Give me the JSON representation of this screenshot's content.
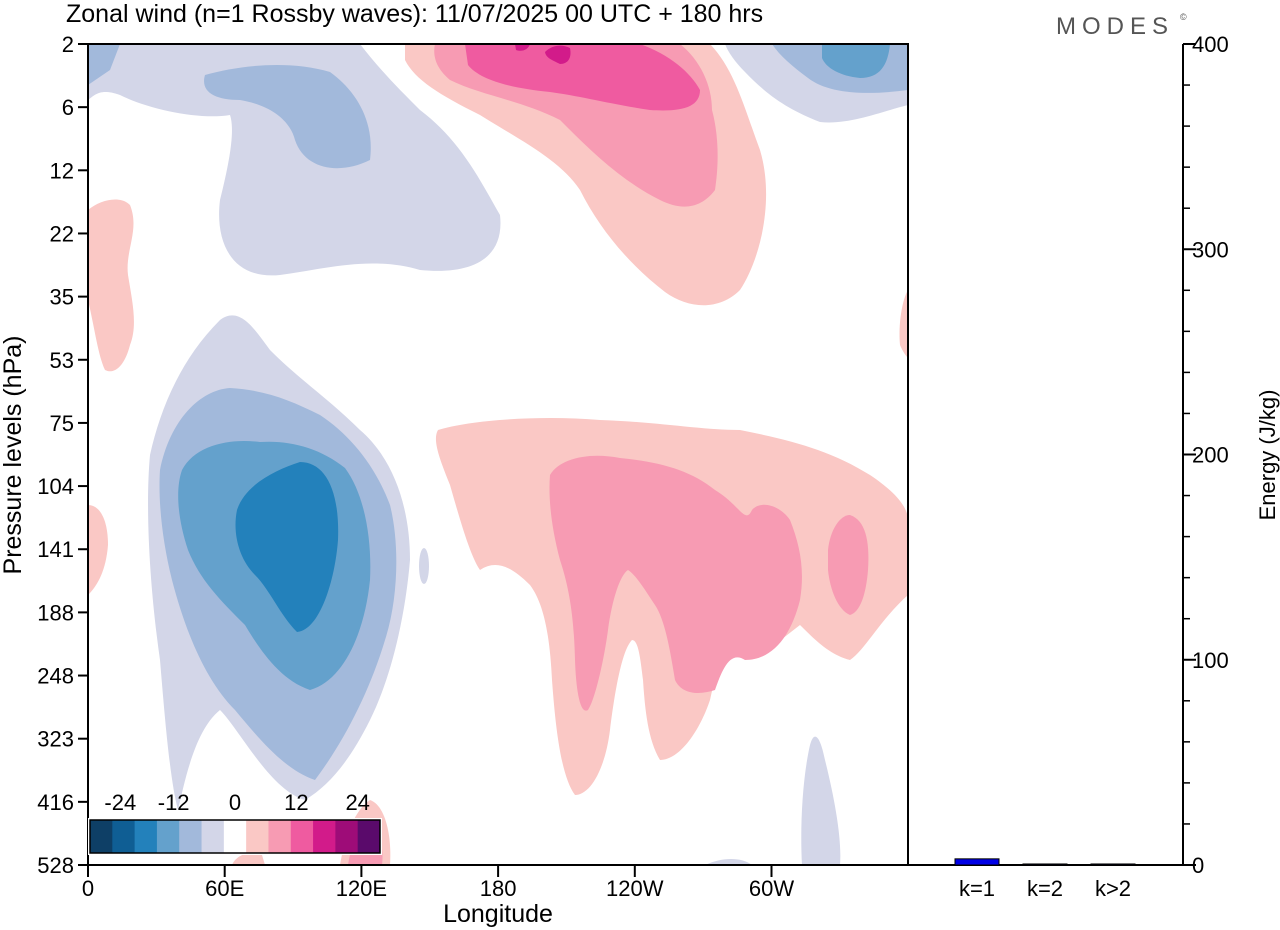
{
  "title": "Zonal wind (n=1 Rossby waves):  11/07/2025  00 UTC  + 180 hrs",
  "logo_text": "MODES",
  "logo_mark": "©",
  "chart_data": [
    {
      "type": "contour",
      "variable": "Zonal wind (n=1 Rossby waves)",
      "xlabel": "Longitude",
      "ylabel": "Pressure levels (hPa)",
      "x_ticks": [
        "0",
        "60E",
        "120E",
        "180",
        "120W",
        "60W"
      ],
      "y_ticks": [
        "2",
        "6",
        "12",
        "22",
        "35",
        "53",
        "75",
        "104",
        "141",
        "188",
        "248",
        "323",
        "416",
        "528"
      ],
      "colorbar": {
        "tick_labels": [
          "-24",
          "-12",
          "0",
          "12",
          "24"
        ],
        "colors": [
          "#0e3f66",
          "#0f5e94",
          "#2381bb",
          "#64a1cc",
          "#a2b9db",
          "#d3d6e8",
          "#ffffff",
          "#fac8c5",
          "#f79bb3",
          "#ef5ba0",
          "#d21b8a",
          "#9e0c78",
          "#5a0a6b"
        ]
      },
      "features": [
        {
          "sign": "negative",
          "peak_level": "-24 to -18",
          "lon": "60E-120E",
          "pressure": "75-323 hPa"
        },
        {
          "sign": "positive",
          "peak_level": "12 to 18",
          "lon": "180-60W",
          "pressure": "75-416 hPa"
        },
        {
          "sign": "positive",
          "peak_level": "18 to 24",
          "lon": "150E-120W",
          "pressure": "2-22 hPa"
        },
        {
          "sign": "negative",
          "peak_level": "-12 to -6",
          "lon": "60E-180",
          "pressure": "2-35 hPa"
        }
      ]
    },
    {
      "type": "bar",
      "ylabel": "Energy (J/kg)",
      "ylim": [
        0,
        400
      ],
      "y_ticks": [
        "0",
        "100",
        "200",
        "300",
        "400"
      ],
      "categories": [
        "k=1",
        "k=2",
        "k>2"
      ],
      "values": [
        3,
        0.5,
        0.5
      ],
      "colors": [
        "#0000e6",
        "#0000e6",
        "#0000e6"
      ]
    }
  ]
}
